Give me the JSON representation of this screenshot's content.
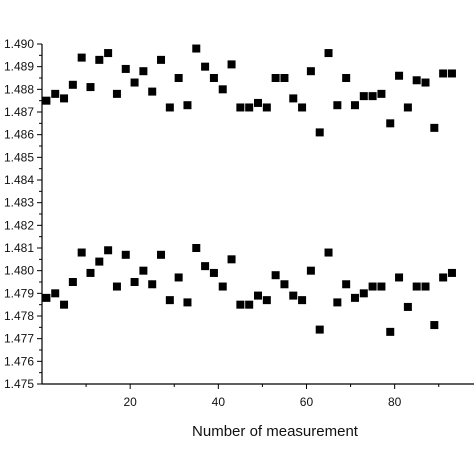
{
  "chart_data": {
    "type": "scatter",
    "xlabel": "Number of measurement",
    "ylabel": "",
    "xlim": [
      0,
      98
    ],
    "ylim": [
      1.475,
      1.49
    ],
    "x_ticks": [
      20,
      40,
      60,
      80
    ],
    "y_ticks": [
      1.475,
      1.476,
      1.477,
      1.478,
      1.479,
      1.48,
      1.481,
      1.482,
      1.483,
      1.484,
      1.485,
      1.486,
      1.487,
      1.488,
      1.489,
      1.49
    ],
    "x_tick_labels": [
      "20",
      "40",
      "60",
      "80"
    ],
    "y_tick_labels": [
      "1.475",
      "1.476",
      "1.477",
      "1.478",
      "1.479",
      "1.480",
      "1.481",
      "1.482",
      "1.483",
      "1.484",
      "1.485",
      "1.486",
      "1.487",
      "1.488",
      "1.489",
      "1.490"
    ],
    "marker": "square",
    "marker_color": "#000000",
    "grid": false,
    "series": [
      {
        "x": [
          1,
          3,
          5,
          7,
          9,
          11,
          13,
          15,
          17,
          19,
          21,
          23,
          25,
          27,
          29,
          31,
          33,
          35,
          37,
          39,
          41,
          43,
          45,
          47,
          49,
          51,
          53,
          55,
          57,
          59,
          61,
          63,
          65,
          67,
          69,
          71,
          73,
          75,
          77,
          79,
          81,
          83,
          85,
          87,
          89,
          91,
          93
        ],
        "y": [
          1.4875,
          1.4878,
          1.4876,
          1.4882,
          1.4894,
          1.4881,
          1.4893,
          1.4896,
          1.4878,
          1.4889,
          1.4883,
          1.4888,
          1.4879,
          1.4893,
          1.4872,
          1.4885,
          1.4873,
          1.4898,
          1.489,
          1.4885,
          1.488,
          1.4891,
          1.4872,
          1.4872,
          1.4874,
          1.4872,
          1.4885,
          1.4885,
          1.4876,
          1.4872,
          1.4888,
          1.4861,
          1.4896,
          1.4873,
          1.4885,
          1.4873,
          1.4877,
          1.4877,
          1.4878,
          1.4865,
          1.4886,
          1.4872,
          1.4884,
          1.4883,
          1.4863,
          1.4887,
          1.4887
        ]
      },
      {
        "x": [
          1,
          3,
          5,
          7,
          9,
          11,
          13,
          15,
          17,
          19,
          21,
          23,
          25,
          27,
          29,
          31,
          33,
          35,
          37,
          39,
          41,
          43,
          45,
          47,
          49,
          51,
          53,
          55,
          57,
          59,
          61,
          63,
          65,
          67,
          69,
          71,
          73,
          75,
          77,
          79,
          81,
          83,
          85,
          87,
          89,
          91,
          93
        ],
        "y": [
          1.4788,
          1.479,
          1.4785,
          1.4795,
          1.4808,
          1.4799,
          1.4804,
          1.4809,
          1.4793,
          1.4807,
          1.4795,
          1.48,
          1.4794,
          1.4807,
          1.4787,
          1.4797,
          1.4786,
          1.481,
          1.4802,
          1.4799,
          1.4793,
          1.4805,
          1.4785,
          1.4785,
          1.4789,
          1.4787,
          1.4798,
          1.4794,
          1.4789,
          1.4787,
          1.48,
          1.4774,
          1.4808,
          1.4786,
          1.4794,
          1.4788,
          1.479,
          1.4793,
          1.4793,
          1.4773,
          1.4797,
          1.4784,
          1.4793,
          1.4793,
          1.4776,
          1.4797,
          1.4799
        ]
      }
    ]
  }
}
